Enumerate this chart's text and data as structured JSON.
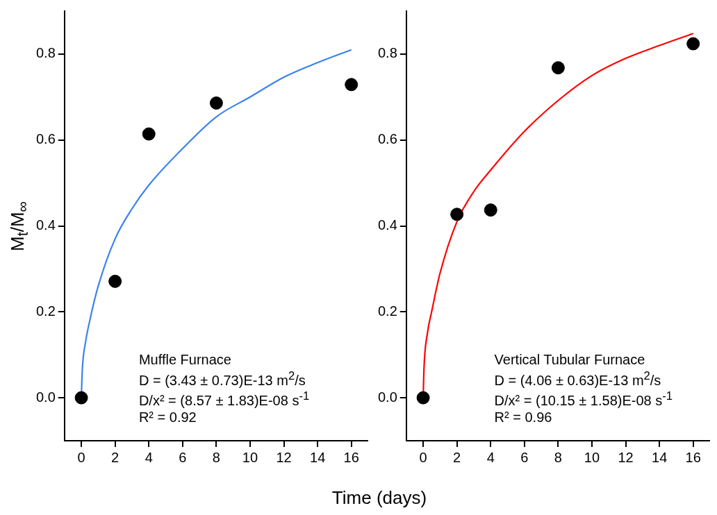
{
  "chart_data": [
    {
      "type": "scatter",
      "ylabel": "M$_{t}$/M$_{∞}$",
      "xlabel": "Time (days)",
      "xlim": [
        -1,
        17
      ],
      "xticks": [
        0,
        2,
        4,
        6,
        8,
        10,
        12,
        14,
        16
      ],
      "ylim": [
        -0.1,
        0.9
      ],
      "yticks": [
        {
          "value": 0,
          "label": "0.0"
        },
        0.2,
        0.4,
        0.6,
        0.8
      ],
      "x": [
        0,
        2,
        4,
        8,
        16
      ],
      "series": [
        {
          "marker": "circle",
          "color": "#000000",
          "values": [
            0,
            0.271,
            0.614,
            0.686,
            0.729
          ]
        },
        {
          "type": "line",
          "color": "#3b82f0",
          "x": [
            0,
            0.05,
            0.25,
            0.5,
            1,
            2,
            3,
            4,
            6,
            8,
            10,
            12,
            14,
            16
          ],
          "values": [
            0,
            0.06,
            0.13,
            0.18,
            0.26,
            0.37,
            0.44,
            0.495,
            0.58,
            0.654,
            0.7,
            0.746,
            0.78,
            0.81
          ]
        }
      ],
      "annotations": [
        "Muffle Furnace",
        "D = (3.43 ± 0.73)E-13 m$^{2}$/s",
        "D/x² = (8.57 ± 1.83)E-08 s$^{-1}$",
        "R² = 0.92"
      ]
    },
    {
      "type": "scatter",
      "xlim": [
        -1,
        17
      ],
      "xticks": [
        0,
        2,
        4,
        6,
        8,
        10,
        12,
        14,
        16
      ],
      "ylim": [
        -0.1,
        0.9
      ],
      "yticks": [
        {
          "value": 0,
          "label": "0.0"
        },
        0.2,
        0.4,
        0.6,
        0.8
      ],
      "x": [
        0,
        2,
        4,
        8,
        16
      ],
      "series": [
        {
          "marker": "circle",
          "color": "#000000",
          "values": [
            0,
            0.427,
            0.437,
            0.768,
            0.824
          ]
        },
        {
          "type": "line",
          "color": "#ff0000",
          "x": [
            0,
            0.05,
            0.25,
            0.5,
            1,
            2,
            3,
            4,
            6,
            8,
            10,
            12,
            14,
            16
          ],
          "values": [
            0,
            0.07,
            0.15,
            0.2,
            0.29,
            0.41,
            0.48,
            0.53,
            0.62,
            0.692,
            0.75,
            0.79,
            0.82,
            0.848
          ]
        }
      ],
      "annotations": [
        "Vertical Tubular Furnace",
        "D = (4.06 ± 0.63)E-13 m$^{2}$/s",
        "D/x² = (10.15 ± 1.58)E-08 s$^{-1}$",
        "R² = 0.96"
      ]
    }
  ]
}
